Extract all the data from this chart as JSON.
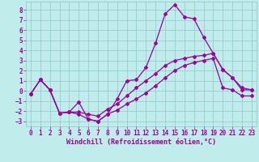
{
  "xlabel": "Windchill (Refroidissement éolien,°C)",
  "bg_color": "#c0ecec",
  "line_color": "#990099",
  "grid_color": "#90c8c8",
  "ylim": [
    -3.5,
    8.8
  ],
  "xlim": [
    -0.5,
    23.5
  ],
  "yticks": [
    -3,
    -2,
    -1,
    0,
    1,
    2,
    3,
    4,
    5,
    6,
    7,
    8
  ],
  "xticks": [
    0,
    1,
    2,
    3,
    4,
    5,
    6,
    7,
    8,
    9,
    10,
    11,
    12,
    13,
    14,
    15,
    16,
    17,
    18,
    19,
    20,
    21,
    22,
    23
  ],
  "line1_x": [
    0,
    1,
    2,
    3,
    4,
    5,
    6,
    7,
    8,
    9,
    10,
    11,
    12,
    13,
    14,
    15,
    16,
    17,
    18,
    19,
    20,
    21,
    22,
    23
  ],
  "line1_y": [
    -0.3,
    1.1,
    0.1,
    -2.2,
    -2.1,
    -1.1,
    -2.8,
    -3.0,
    -2.3,
    -0.8,
    1.0,
    1.1,
    2.3,
    4.7,
    7.6,
    8.5,
    7.3,
    7.1,
    5.3,
    3.7,
    2.1,
    1.3,
    0.1,
    0.1
  ],
  "line2_x": [
    0,
    1,
    2,
    3,
    4,
    5,
    6,
    7,
    8,
    9,
    10,
    11,
    12,
    13,
    14,
    15,
    16,
    17,
    18,
    19,
    20,
    21,
    22,
    23
  ],
  "line2_y": [
    -0.3,
    1.1,
    0.1,
    -2.2,
    -2.1,
    -2.1,
    -2.3,
    -2.5,
    -1.8,
    -1.3,
    -0.5,
    0.3,
    1.0,
    1.7,
    2.5,
    3.0,
    3.2,
    3.4,
    3.5,
    3.7,
    2.1,
    1.3,
    0.3,
    0.1
  ],
  "line3_x": [
    0,
    1,
    2,
    3,
    4,
    5,
    6,
    7,
    8,
    9,
    10,
    11,
    12,
    13,
    14,
    15,
    16,
    17,
    18,
    19,
    20,
    21,
    22,
    23
  ],
  "line3_y": [
    -0.3,
    1.1,
    0.1,
    -2.2,
    -2.1,
    -2.3,
    -2.8,
    -3.0,
    -2.3,
    -1.9,
    -1.3,
    -0.8,
    -0.2,
    0.5,
    1.3,
    2.0,
    2.5,
    2.8,
    3.0,
    3.2,
    0.3,
    0.1,
    -0.5,
    -0.5
  ],
  "marker": "D",
  "markersize": 2,
  "linewidth": 0.9,
  "tick_fontsize": 5.5,
  "label_fontsize": 6.0
}
